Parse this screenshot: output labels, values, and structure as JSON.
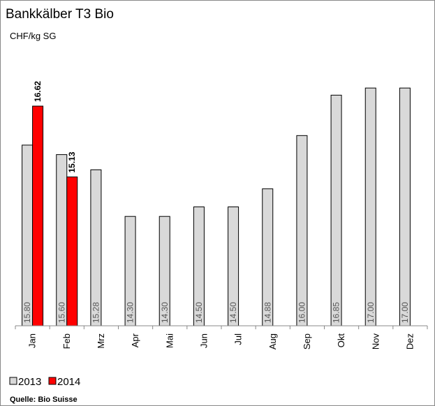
{
  "chart_data": {
    "type": "bar",
    "title": "Bankkälber T3 Bio",
    "subtitle": "CHF/kg SG",
    "categories": [
      "Jan",
      "Feb",
      "Mrz",
      "Apr",
      "Mai",
      "Jun",
      "Jul",
      "Aug",
      "Sep",
      "Okt",
      "Nov",
      "Dez"
    ],
    "series": [
      {
        "name": "2013",
        "color": "#d9d9d9",
        "values": [
          15.8,
          15.6,
          15.28,
          14.3,
          14.3,
          14.5,
          14.5,
          14.88,
          16.0,
          16.85,
          17.0,
          17.0
        ],
        "value_labels": [
          "15.80",
          "15.60",
          "15.28",
          "14.30",
          "14.30",
          "14.50",
          "14.50",
          "14.88",
          "16.00",
          "16.85",
          "17.00",
          "17.00"
        ]
      },
      {
        "name": "2014",
        "color": "#ff0000",
        "values": [
          16.62,
          15.13,
          null,
          null,
          null,
          null,
          null,
          null,
          null,
          null,
          null,
          null
        ]
      }
    ],
    "ylim": [
      12,
      18
    ],
    "source": "Quelle: Bio Suisse"
  }
}
